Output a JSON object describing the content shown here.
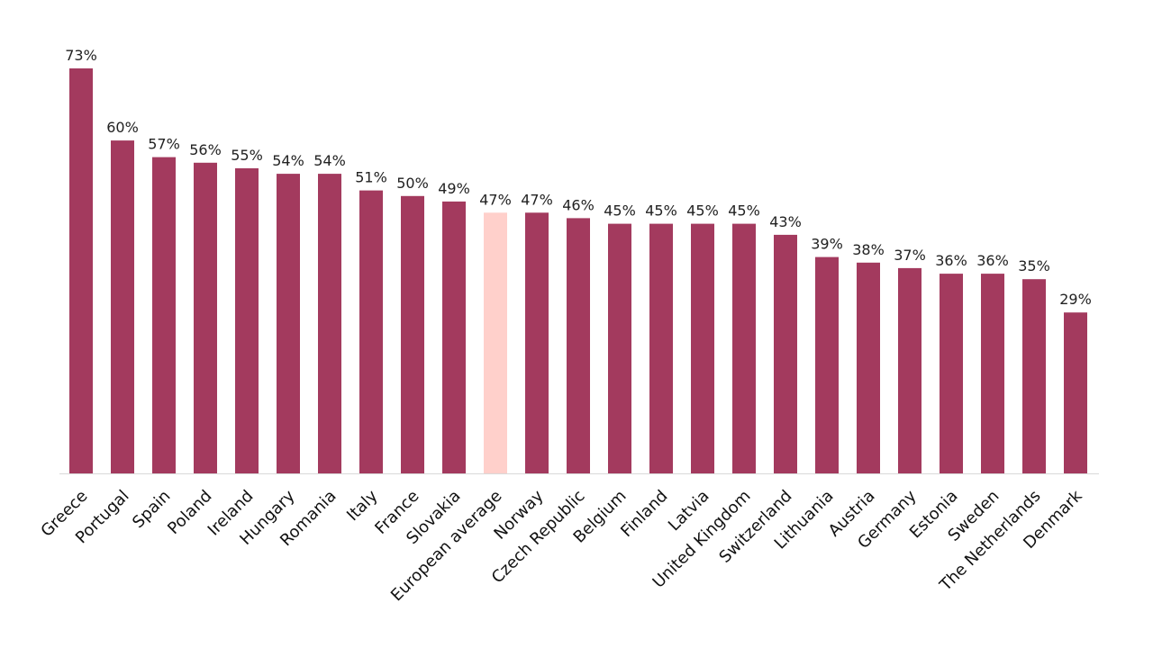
{
  "chart_data": {
    "type": "bar",
    "title": "",
    "xlabel": "",
    "ylabel": "",
    "ylim": [
      0,
      73
    ],
    "grid": false,
    "legend": "none",
    "value_format": "percent",
    "colors": {
      "bar": "#A33A5E",
      "highlight": "#FFD0CB",
      "baseline": "#D9D9D9"
    },
    "highlight_category": "European average",
    "categories": [
      "Greece",
      "Portugal",
      "Spain",
      "Poland",
      "Ireland",
      "Hungary",
      "Romania",
      "Italy",
      "France",
      "Slovakia",
      "European average",
      "Norway",
      "Czech Republic",
      "Belgium",
      "Finland",
      "Latvia",
      "United Kingdom",
      "Switzerland",
      "Lithuania",
      "Austria",
      "Germany",
      "Estonia",
      "Sweden",
      "The Netherlands",
      "Denmark"
    ],
    "values": [
      73,
      60,
      57,
      56,
      55,
      54,
      54,
      51,
      50,
      49,
      47,
      47,
      46,
      45,
      45,
      45,
      45,
      43,
      39,
      38,
      37,
      36,
      36,
      35,
      29
    ],
    "data_labels": [
      "73%",
      "60%",
      "57%",
      "56%",
      "55%",
      "54%",
      "54%",
      "51%",
      "50%",
      "49%",
      "47%",
      "47%",
      "46%",
      "45%",
      "45%",
      "45%",
      "45%",
      "43%",
      "39%",
      "38%",
      "37%",
      "36%",
      "36%",
      "35%",
      "29%"
    ]
  }
}
